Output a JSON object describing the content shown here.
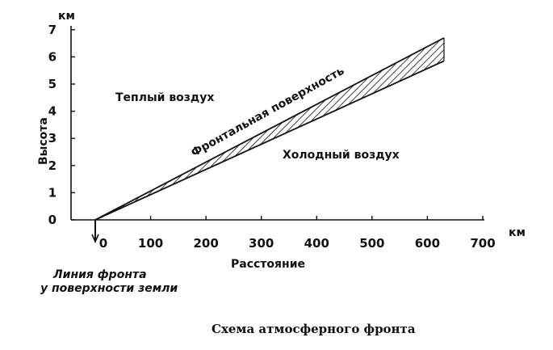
{
  "chart_data": {
    "type": "diagram",
    "x_unit": "км",
    "y_unit": "км",
    "xlabel": "Расстояние",
    "ylabel": "Высота",
    "x_ticks": [
      0,
      100,
      200,
      300,
      400,
      500,
      600,
      700
    ],
    "y_ticks": [
      0,
      1,
      2,
      3,
      4,
      5,
      6,
      7
    ],
    "xlim": [
      0,
      700
    ],
    "ylim": [
      0,
      7
    ],
    "front_upper": [
      [
        0,
        0
      ],
      [
        630,
        6.7
      ]
    ],
    "front_lower": [
      [
        0,
        0
      ],
      [
        630,
        5.85
      ]
    ],
    "front_label": "Фронтальная поверхность",
    "warm_air": "Теплый воздух",
    "cold_air": "Холодный воздух",
    "front_line_label": [
      "Линия фронта",
      "у поверхности земли"
    ]
  },
  "caption": "Схема атмосферного фронта"
}
